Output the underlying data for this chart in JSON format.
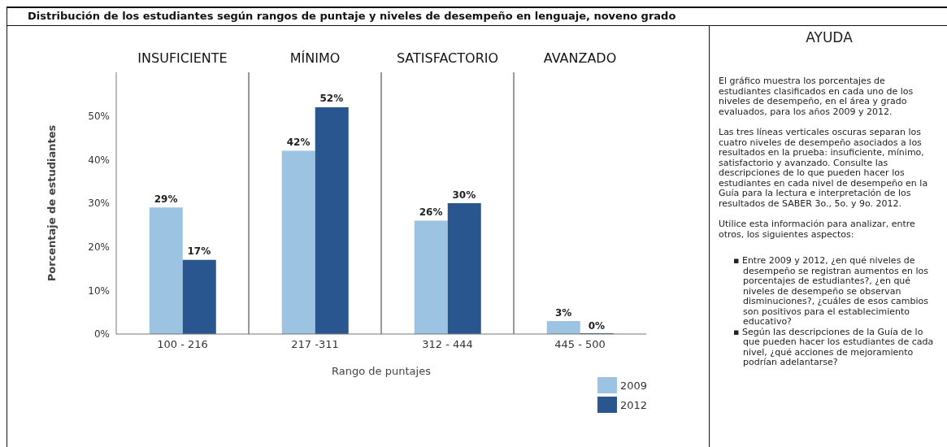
{
  "chart_data": {
    "type": "bar",
    "title": "Distribución de los estudiantes según rangos de puntaje y niveles de desempeño en lenguaje, noveno grado",
    "xlabel": "Rango de puntajes",
    "ylabel": "Porcentaje de estudiantes",
    "categories": [
      "100 - 216",
      "217 -311",
      "312 - 444",
      "445 - 500"
    ],
    "series": [
      {
        "name": "2009",
        "color": "#9dc3e2",
        "values": [
          29,
          42,
          26,
          3
        ],
        "value_labels": [
          "29%",
          "42%",
          "26%",
          "3%"
        ]
      },
      {
        "name": "2012",
        "color": "#2a568f",
        "values": [
          17,
          52,
          30,
          0
        ],
        "value_labels": [
          "17%",
          "52%",
          "30%",
          "0%"
        ]
      }
    ],
    "ylim": [
      0,
      60
    ],
    "yticks": [
      {
        "value": 0,
        "label": "0%"
      },
      {
        "value": 10,
        "label": "10%"
      },
      {
        "value": 20,
        "label": "20%"
      },
      {
        "value": 30,
        "label": "30%"
      },
      {
        "value": 40,
        "label": "40%"
      },
      {
        "value": 50,
        "label": "50%"
      }
    ],
    "grid": false,
    "legend": "bottom right",
    "annotations": [
      "INSUFICIENTE",
      "MÍNIMO",
      "SATISFACTORIO",
      "AVANZADO",
      "AYUDA",
      "El gráfico muestra los porcentajes de estudiantes clasificados en cada uno de los niveles de desempeño, en el área y grado evaluados, para los años 2009 y 2012.",
      "Las tres líneas verticales oscuras separan los cuatro niveles de desempeño asociados a los resultados en la prueba: insuficiente, mínimo, satisfactorio y avanzado. Consulte las descripciones de lo que pueden hacer los estudiantes en cada nivel de desempeño en la Guía para la lectura e interpretación de los resultados de SABER 3o., 5o. y 9o. 2012.",
      "Utilice esta información para analizar, entre otros, los siguientes aspectos:",
      "▪ Entre 2009 y 2012, ¿en qué niveles de desempeño se registran aumentos en los porcentajes de estudiantes?, ¿en qué niveles de desempeño se observan disminuciones?, ¿cuáles de esos cambios son positivos para el establecimiento educativo?",
      "▪ Según las descripciones de la Guía de lo que pueden hacer los estudiantes de cada nivel, ¿qué acciones de mejoramiento podrían adelantarse?"
    ]
  }
}
